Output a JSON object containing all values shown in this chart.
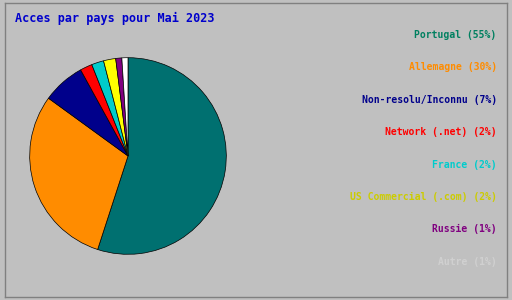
{
  "title": "Acces par pays pour Mai 2023",
  "title_color": "#0000cc",
  "title_fontsize": 8.5,
  "background_color": "#c0c0c0",
  "plot_bg_color": "#c0c0c0",
  "labels": [
    "Portugal (55%)",
    "Allemagne (30%)",
    "Non-resolu/Inconnu (7%)",
    "Network (.net) (2%)",
    "France (2%)",
    "US Commercial (.com) (2%)",
    "Russie (1%)",
    "Autre (1%)"
  ],
  "values": [
    55,
    30,
    7,
    2,
    2,
    2,
    1,
    1
  ],
  "slice_colors": [
    "#007070",
    "#ff8c00",
    "#00008b",
    "#ff0000",
    "#00cccc",
    "#ffff00",
    "#800080",
    "#ffffff"
  ],
  "legend_text_colors": [
    "#008060",
    "#ff8c00",
    "#00008b",
    "#ff0000",
    "#00cccc",
    "#cccc00",
    "#800080",
    "#d0d0d0"
  ],
  "startangle": 90,
  "fontsize": 7.0
}
